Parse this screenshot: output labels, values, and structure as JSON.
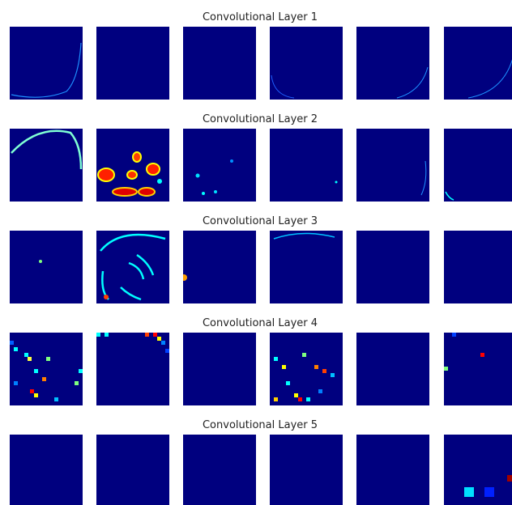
{
  "figure": {
    "rows": [
      {
        "title": "Convolutional Layer 1"
      },
      {
        "title": "Convolutional Layer 2"
      },
      {
        "title": "Convolutional Layer 3"
      },
      {
        "title": "Convolutional Layer 4"
      },
      {
        "title": "Convolutional Layer 5"
      }
    ]
  }
}
